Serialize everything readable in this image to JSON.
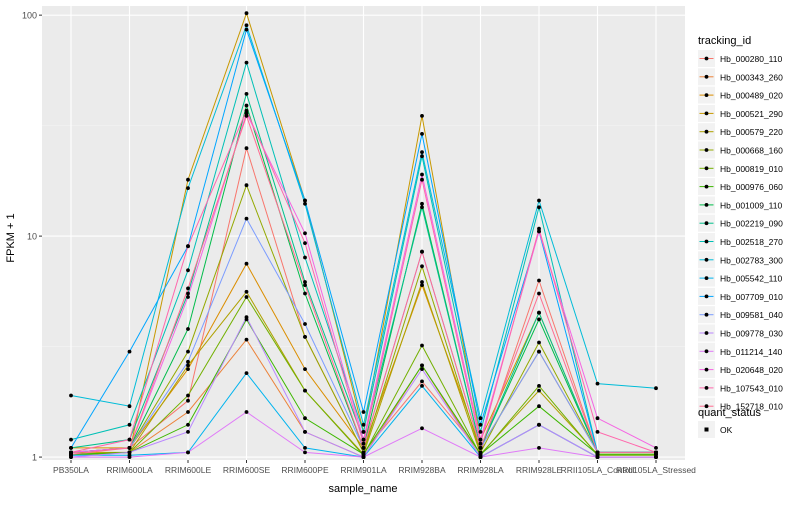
{
  "chart_data": {
    "type": "line",
    "xlabel": "sample_name",
    "ylabel": "FPKM + 1",
    "yscale": "log10",
    "ylim": [
      0.97,
      110
    ],
    "y_ticks": [
      1,
      10,
      100
    ],
    "y_tick_labels": [
      "1",
      "10",
      "100"
    ],
    "grid": true,
    "legend_position": "right",
    "categories": [
      "PB350LA",
      "RRIM600LA",
      "RRIM600LE",
      "RRIM600SE",
      "RRIM600PE",
      "RRIM901LA",
      "RRIM928BA",
      "RRIM928LA",
      "RRIM928LE",
      "RRII105LA_Control",
      "RRII105LA_Stressed"
    ],
    "legend_title": "tracking_id",
    "series": [
      {
        "name": "Hb_000280_110",
        "color": "#F8766D",
        "values": [
          1.05,
          1.1,
          1.8,
          25,
          3.5,
          1.05,
          2.2,
          1.05,
          6.3,
          1.05,
          1.05
        ]
      },
      {
        "name": "Hb_000343_260",
        "color": "#EC8239",
        "values": [
          1.02,
          1.05,
          1.6,
          3.4,
          1.3,
          1.0,
          2.6,
          1.0,
          1.4,
          1.0,
          1.0
        ]
      },
      {
        "name": "Hb_000489_020",
        "color": "#DB8E00",
        "values": [
          1.1,
          1.1,
          2.5,
          7.5,
          2.5,
          1.1,
          6.0,
          1.1,
          3.0,
          1.05,
          1.05
        ]
      },
      {
        "name": "Hb_000521_290",
        "color": "#C79800",
        "values": [
          1.05,
          1.05,
          18,
          102,
          14.5,
          1.3,
          35,
          1.2,
          4.5,
          1.05,
          1.05
        ]
      },
      {
        "name": "Hb_000579_220",
        "color": "#AFA100",
        "values": [
          1.03,
          1.05,
          2.6,
          5.6,
          2.0,
          1.03,
          6.2,
          1.03,
          2.0,
          1.03,
          1.03
        ]
      },
      {
        "name": "Hb_000668_160",
        "color": "#94A900",
        "values": [
          1.05,
          1.1,
          3.0,
          17,
          3.5,
          1.05,
          7.3,
          1.05,
          3.3,
          1.05,
          1.05
        ]
      },
      {
        "name": "Hb_000819_010",
        "color": "#72B000",
        "values": [
          1.02,
          1.05,
          1.9,
          5.3,
          2.0,
          1.02,
          3.2,
          1.02,
          2.1,
          1.02,
          1.02
        ]
      },
      {
        "name": "Hb_000976_060",
        "color": "#3DB700",
        "values": [
          1.03,
          1.05,
          1.4,
          4.2,
          1.5,
          1.03,
          2.6,
          1.03,
          1.7,
          1.03,
          1.03
        ]
      },
      {
        "name": "Hb_001009_110",
        "color": "#00BC4A",
        "values": [
          1.05,
          1.1,
          3.8,
          39,
          5.5,
          1.1,
          14,
          1.1,
          4.2,
          1.05,
          1.05
        ]
      },
      {
        "name": "Hb_002219_090",
        "color": "#00C08B",
        "values": [
          1.1,
          1.2,
          5.5,
          44,
          6.2,
          1.2,
          13.5,
          1.1,
          4.5,
          1.05,
          1.05
        ]
      },
      {
        "name": "Hb_002518_270",
        "color": "#00C0B6",
        "values": [
          1.2,
          1.4,
          7,
          61,
          8,
          1.3,
          23,
          1.3,
          13.5,
          1.05,
          1.05
        ]
      },
      {
        "name": "Hb_002783_300",
        "color": "#00BCD8",
        "values": [
          1.9,
          1.7,
          16.5,
          90,
          14,
          1.4,
          24,
          1.5,
          14.5,
          2.15,
          2.05
        ]
      },
      {
        "name": "Hb_005542_110",
        "color": "#00B4EF",
        "values": [
          1.02,
          1.02,
          1.05,
          2.4,
          1.1,
          1.0,
          2.1,
          1.0,
          1.4,
          1.0,
          1.0
        ]
      },
      {
        "name": "Hb_007709_010",
        "color": "#00A5FF",
        "values": [
          1.1,
          3.0,
          9,
          86,
          14.5,
          1.6,
          29,
          1.4,
          10.5,
          1.05,
          1.05
        ]
      },
      {
        "name": "Hb_009581_040",
        "color": "#7B9CFF",
        "values": [
          1.05,
          1.1,
          2.7,
          12,
          4.0,
          1.1,
          8.5,
          1.1,
          3.0,
          1.05,
          1.05
        ]
      },
      {
        "name": "Hb_009778_030",
        "color": "#B987FF",
        "values": [
          1.0,
          1.05,
          1.3,
          4.3,
          1.3,
          1.0,
          2.5,
          1.0,
          1.4,
          1.0,
          1.0
        ]
      },
      {
        "name": "Hb_011214_140",
        "color": "#E07AF8",
        "values": [
          1.0,
          1.0,
          1.05,
          1.6,
          1.05,
          1.0,
          1.35,
          1.0,
          1.1,
          1.0,
          1.0
        ]
      },
      {
        "name": "Hb_020648_020",
        "color": "#F564E3",
        "values": [
          1.05,
          1.1,
          5.3,
          36,
          10.3,
          1.2,
          19,
          1.2,
          10.5,
          1.5,
          1.1
        ]
      },
      {
        "name": "Hb_107543_010",
        "color": "#FF67AC",
        "values": [
          1.05,
          1.2,
          9.0,
          37,
          9.3,
          1.15,
          18,
          1.15,
          10.8,
          1.3,
          1.05
        ]
      },
      {
        "name": "Hb_152718_010",
        "color": "#FF6C90",
        "values": [
          1.03,
          1.1,
          5.8,
          35,
          6.0,
          1.1,
          8.5,
          1.1,
          5.5,
          1.05,
          1.05
        ]
      }
    ],
    "shape_legend": {
      "title": "quant_status",
      "items": [
        "OK"
      ]
    }
  }
}
